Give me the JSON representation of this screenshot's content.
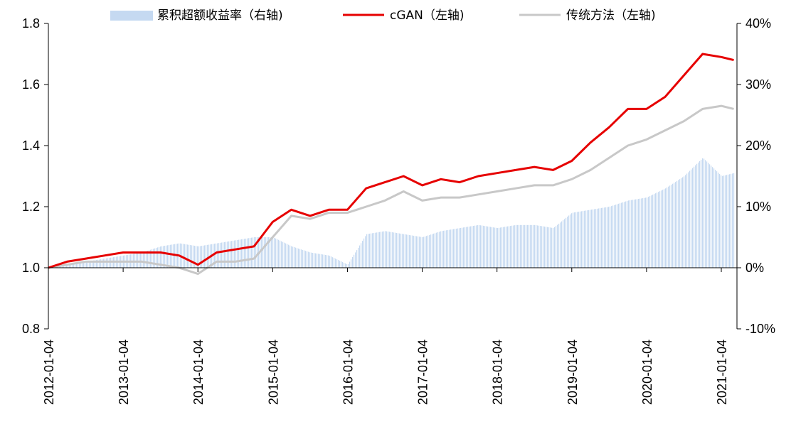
{
  "chart_data": {
    "type": "line",
    "title": "",
    "xlabel": "",
    "ylabel": "",
    "ylim": [
      0.8,
      1.8
    ],
    "y2lim": [
      -10,
      40
    ],
    "y_ticks": [
      "0.8",
      "1.0",
      "1.2",
      "1.4",
      "1.6",
      "1.8"
    ],
    "y2_ticks": [
      "-10%",
      "0%",
      "10%",
      "20%",
      "30%",
      "40%"
    ],
    "x_ticks": [
      "2012-01-04",
      "2013-01-04",
      "2014-01-04",
      "2015-01-04",
      "2016-01-04",
      "2017-01-04",
      "2018-01-04",
      "2019-01-04",
      "2020-01-04",
      "2021-01-04"
    ],
    "legend_position": "top",
    "colors": {
      "excess": "#c5d9f1",
      "cgan": "#e60000",
      "traditional": "#c8c8c8"
    },
    "x": [
      "2012-01",
      "2012-04",
      "2012-07",
      "2012-10",
      "2013-01",
      "2013-04",
      "2013-07",
      "2013-10",
      "2014-01",
      "2014-04",
      "2014-07",
      "2014-10",
      "2015-01",
      "2015-04",
      "2015-07",
      "2015-10",
      "2016-01",
      "2016-04",
      "2016-07",
      "2016-10",
      "2017-01",
      "2017-04",
      "2017-07",
      "2017-10",
      "2018-01",
      "2018-04",
      "2018-07",
      "2018-10",
      "2019-01",
      "2019-04",
      "2019-07",
      "2019-10",
      "2020-01",
      "2020-04",
      "2020-07",
      "2020-10",
      "2021-01",
      "2021-03"
    ],
    "series": [
      {
        "name": "累积超额收益率（右轴)",
        "axis": "right",
        "type": "bar",
        "color": "#c5d9f1",
        "values": [
          0.2,
          0.5,
          1.0,
          1.5,
          2.0,
          2.5,
          3.5,
          4.0,
          3.5,
          4.0,
          4.5,
          5.0,
          5.0,
          3.5,
          2.5,
          2.0,
          0.5,
          5.5,
          6.0,
          5.5,
          5.0,
          6.0,
          6.5,
          7.0,
          6.5,
          7.0,
          7.0,
          6.5,
          9.0,
          9.5,
          10.0,
          11.0,
          11.5,
          13.0,
          15.0,
          18.0,
          15.0,
          15.5
        ]
      },
      {
        "name": "cGAN（左轴)",
        "axis": "left",
        "type": "line",
        "color": "#e60000",
        "values": [
          1.0,
          1.02,
          1.03,
          1.04,
          1.05,
          1.05,
          1.05,
          1.04,
          1.01,
          1.05,
          1.06,
          1.07,
          1.15,
          1.19,
          1.17,
          1.19,
          1.19,
          1.26,
          1.28,
          1.3,
          1.27,
          1.29,
          1.28,
          1.3,
          1.31,
          1.32,
          1.33,
          1.32,
          1.35,
          1.41,
          1.46,
          1.52,
          1.52,
          1.56,
          1.63,
          1.7,
          1.69,
          1.68
        ]
      },
      {
        "name": "传统方法（左轴)",
        "axis": "left",
        "type": "line",
        "color": "#c8c8c8",
        "values": [
          1.0,
          1.01,
          1.02,
          1.02,
          1.02,
          1.02,
          1.01,
          1.0,
          0.98,
          1.02,
          1.02,
          1.03,
          1.1,
          1.17,
          1.16,
          1.18,
          1.18,
          1.2,
          1.22,
          1.25,
          1.22,
          1.23,
          1.23,
          1.24,
          1.25,
          1.26,
          1.27,
          1.27,
          1.29,
          1.32,
          1.36,
          1.4,
          1.42,
          1.45,
          1.48,
          1.52,
          1.53,
          1.52
        ]
      }
    ]
  }
}
